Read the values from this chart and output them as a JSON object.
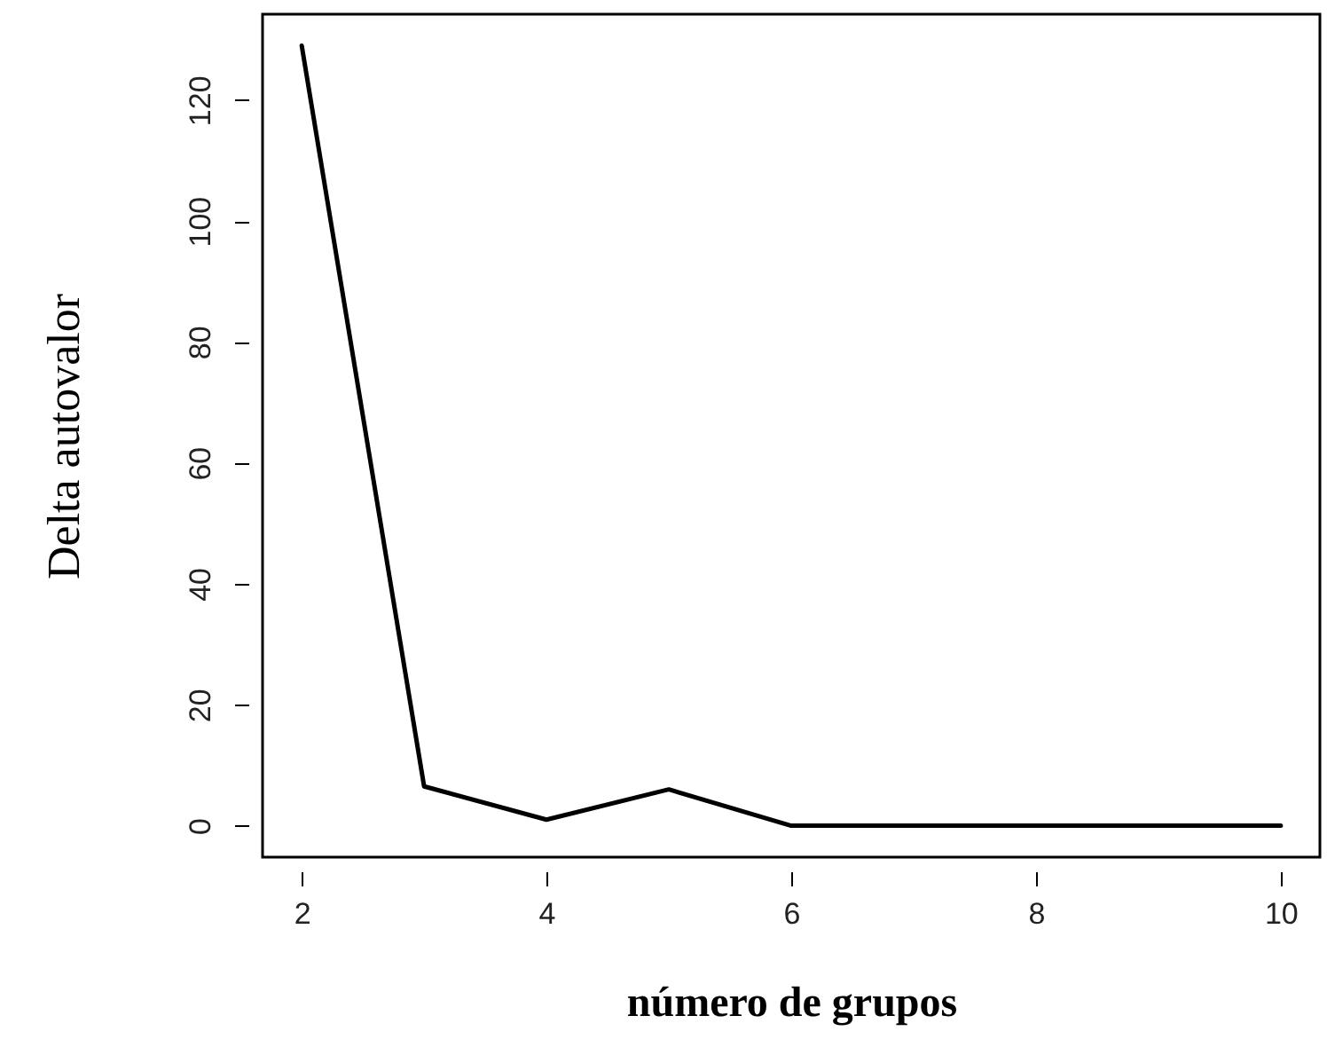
{
  "chart_data": {
    "type": "line",
    "xlabel": "número de grupos",
    "ylabel": "Delta autovalor",
    "x": [
      2,
      3,
      4,
      5,
      6,
      7,
      8,
      9,
      10
    ],
    "series": [
      {
        "color": "#000000",
        "values": [
          129,
          6.5,
          1,
          6,
          0,
          0,
          0,
          0,
          0
        ]
      }
    ],
    "xlim": [
      1.68,
      10.32
    ],
    "ylim": [
      -5.2,
      134.2
    ],
    "xticks": [
      2,
      4,
      6,
      8,
      10
    ],
    "yticks": [
      0,
      20,
      40,
      60,
      80,
      100,
      120
    ],
    "grid": false,
    "marker": "none",
    "line_style": "solid"
  }
}
